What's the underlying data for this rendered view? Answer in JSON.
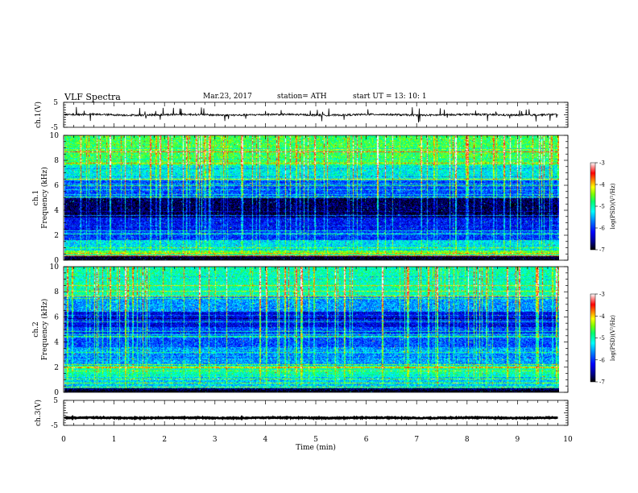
{
  "header": {
    "title": "VLF  Spectra",
    "date": "Mar.23, 2017",
    "station": "station= ATH",
    "start": "start  UT  =   13: 10: 1"
  },
  "colors": {
    "spectrogram_scale": [
      "#000000",
      "#0000a0",
      "#0000ff",
      "#0080ff",
      "#00ffff",
      "#00ff80",
      "#80ff00",
      "#ffff00",
      "#ff8000",
      "#ff0000",
      "#ff8080",
      "#ffffff"
    ],
    "waveform": "#000000"
  },
  "chart_data": [
    {
      "type": "line",
      "panel": "ch1-waveform",
      "ylabel": "ch.1(V)",
      "ylim": [
        -5,
        5
      ],
      "yticks": [
        "5",
        "-5"
      ],
      "xlim": [
        0,
        10
      ],
      "description_values": {
        "baseline": 0,
        "typical_amplitude": 0.6,
        "spike_amplitude": 3
      }
    },
    {
      "type": "heatmap",
      "panel": "ch1-spectrogram",
      "ylabel": "ch.1\nFrequency (kHz)",
      "ylabel_lines": [
        "ch.1",
        "Frequency (kHz)"
      ],
      "ylim": [
        0,
        10
      ],
      "yticks": [
        "0",
        "2",
        "4",
        "6",
        "8",
        "10"
      ],
      "xlim": [
        0,
        9.8
      ],
      "colorbar": {
        "label": "log(PSD)(V²/Hz)",
        "range": [
          -7,
          -3
        ],
        "ticks": [
          "-3",
          "-4",
          "-5",
          "-6",
          "-7"
        ]
      },
      "bands": [
        {
          "f": [
            0,
            0.3
          ],
          "level": -6.9
        },
        {
          "f": [
            0.3,
            0.8
          ],
          "level": -4.6
        },
        {
          "f": [
            0.8,
            1.6
          ],
          "level": -5.3
        },
        {
          "f": [
            1.6,
            2.4
          ],
          "level": -6.0
        },
        {
          "f": [
            2.4,
            3.4
          ],
          "level": -6.2
        },
        {
          "f": [
            3.4,
            5.0
          ],
          "level": -6.8
        },
        {
          "f": [
            5.0,
            6.4
          ],
          "level": -5.9
        },
        {
          "f": [
            6.4,
            7.6
          ],
          "level": -5.2
        },
        {
          "f": [
            7.6,
            10.0
          ],
          "level": -4.7
        }
      ]
    },
    {
      "type": "heatmap",
      "panel": "ch2-spectrogram",
      "ylabel": "ch.2\nFrequency (kHz)",
      "ylabel_lines": [
        "ch.2",
        "Frequency (kHz)"
      ],
      "ylim": [
        0,
        10
      ],
      "yticks": [
        "0",
        "2",
        "4",
        "6",
        "8",
        "10"
      ],
      "xlim": [
        0,
        9.8
      ],
      "colorbar": {
        "label": "log(PSD)(V²/Hz)",
        "range": [
          -7,
          -3
        ],
        "ticks": [
          "-3",
          "-4",
          "-5",
          "-6",
          "-7"
        ]
      },
      "bands": [
        {
          "f": [
            0,
            0.3
          ],
          "level": -6.9
        },
        {
          "f": [
            0.3,
            1.2
          ],
          "level": -5.4
        },
        {
          "f": [
            1.2,
            2.2
          ],
          "level": -5.0
        },
        {
          "f": [
            2.2,
            3.6
          ],
          "level": -5.6
        },
        {
          "f": [
            3.6,
            5.2
          ],
          "level": -5.9
        },
        {
          "f": [
            5.2,
            6.4
          ],
          "level": -6.3
        },
        {
          "f": [
            6.4,
            7.6
          ],
          "level": -5.6
        },
        {
          "f": [
            7.6,
            10.0
          ],
          "level": -5.0
        }
      ]
    },
    {
      "type": "line",
      "panel": "ch3-waveform",
      "ylabel": "ch.3(V)",
      "ylim": [
        -5,
        5
      ],
      "yticks": [
        "5",
        "-5"
      ],
      "xlim": [
        0,
        10
      ],
      "xlabel": "Time  (min)",
      "xticks": [
        "0",
        "1",
        "2",
        "3",
        "4",
        "5",
        "6",
        "7",
        "8",
        "9",
        "10"
      ],
      "description_values": {
        "baseline": -2,
        "typical_amplitude": 0.3
      }
    }
  ]
}
